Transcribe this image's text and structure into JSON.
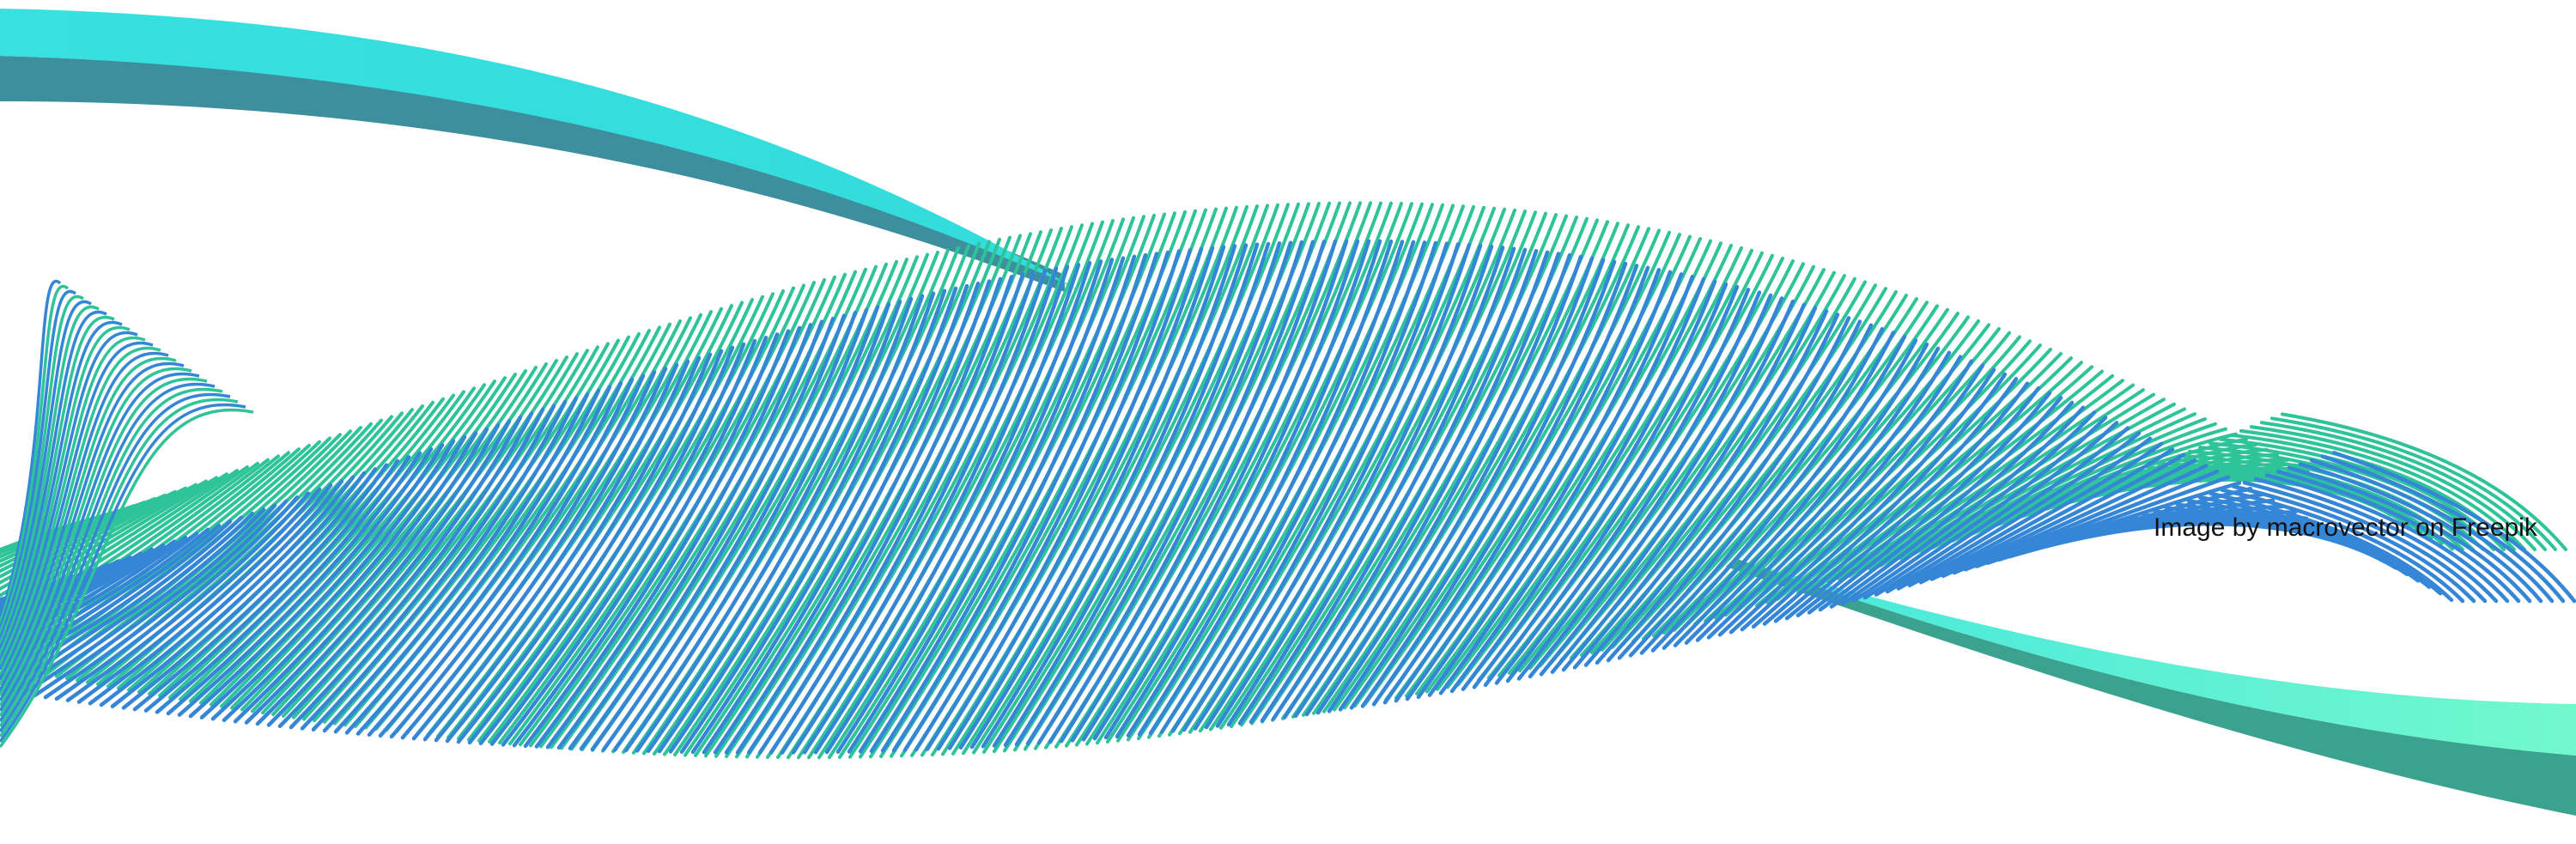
{
  "credit": {
    "text": "Image by macrovector on Freepik"
  },
  "palette": {
    "cyan": "#37e1df",
    "deep_teal": "#3d8f9d",
    "green": "#2fc39a",
    "blue": "#3586d6",
    "mint": "#6df5d0"
  }
}
